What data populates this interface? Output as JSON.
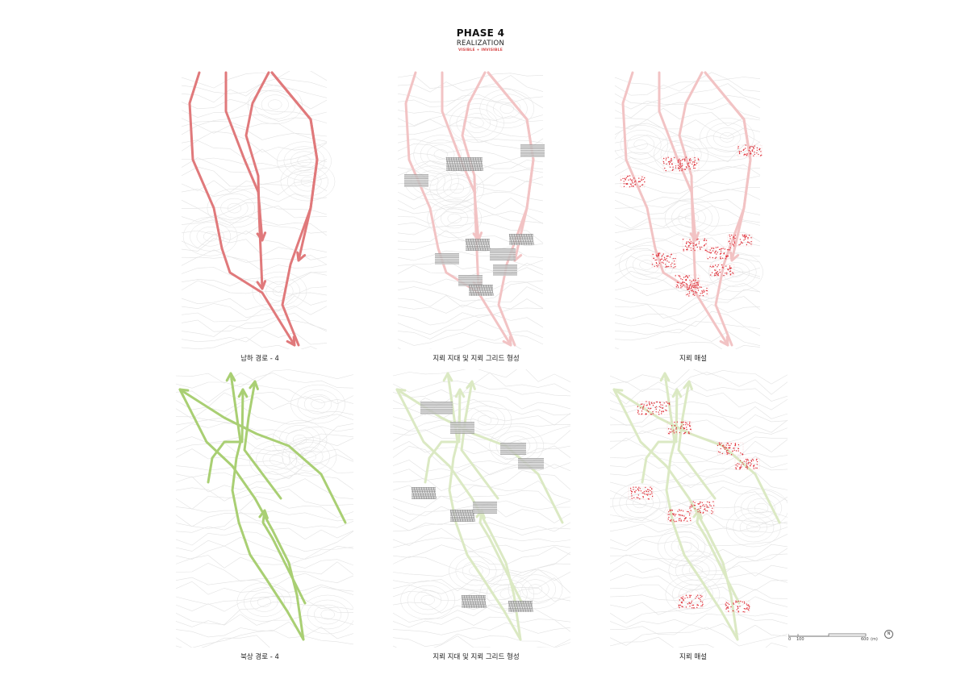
{
  "header": {
    "phase": "PHASE 4",
    "subtitle": "REALIZATION",
    "tagline": "VISIBLE + INVISIBLE"
  },
  "captions": {
    "top_left": "남하 경로 - 4",
    "top_middle": "지뢰 지대 및 지뢰 그리드 형성",
    "top_right": "지뢰 매설",
    "bottom_left": "북상 경로 - 4",
    "bottom_middle": "지뢰 지대 및 지뢰 그리드 형성",
    "bottom_right": "지뢰 매설"
  },
  "scale": {
    "labels": [
      "0",
      "100",
      "600",
      "(m)"
    ],
    "north_symbol": "N"
  },
  "colors": {
    "south_route": "#e0797b",
    "south_route_faded": "#f2c3c4",
    "north_route": "#a9cf73",
    "north_route_faded": "#dbe9c3",
    "minefield_fill": "#9a9a9a",
    "mine_dots": "#e0313a",
    "contour": "#e2e2e2"
  }
}
